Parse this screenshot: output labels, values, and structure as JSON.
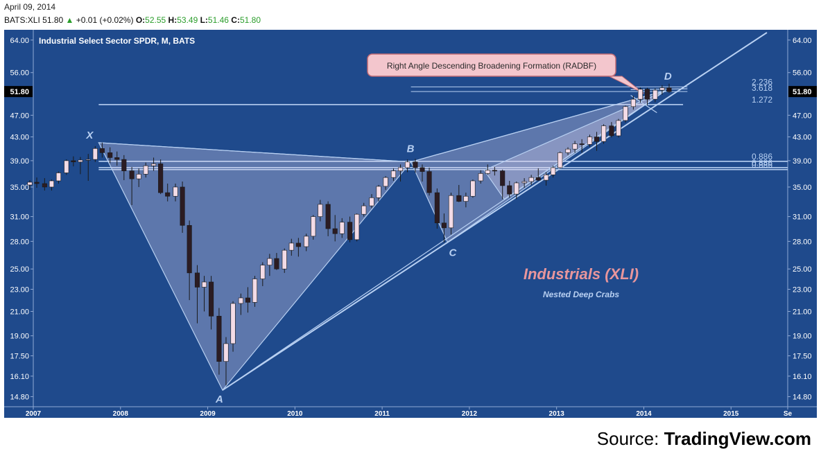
{
  "header": {
    "date": "April 09, 2014",
    "symbol": "BATS:XLI",
    "last": "51.80",
    "change": "+0.01 (+0.02%)",
    "open_label": "O:",
    "open": "52.55",
    "high_label": "H:",
    "high": "53.49",
    "low_label": "L:",
    "low": "51.46",
    "close_label": "C:",
    "close": "51.80"
  },
  "colors": {
    "background": "#1f4a8c",
    "bull_candle": "#f3dbe6",
    "bear_candle": "#2b1c23",
    "pattern_line": "#b8d0f2",
    "title_pink": "#e8969c",
    "subtitle_blue": "#b8d0f2"
  },
  "chart_data": {
    "type": "candlestick",
    "title": "Industrial Select Sector SPDR, M, BATS",
    "annotation_title": "Industrials (XLI)",
    "annotation_subtitle": "Nested Deep Crabs",
    "callout": "Right Angle Descending Broadening Formation (RADBF)",
    "y_scale": "log",
    "ylim": [
      14.2,
      66
    ],
    "y_ticks": [
      "64.00",
      "56.00",
      "47.00",
      "43.00",
      "39.00",
      "35.00",
      "31.00",
      "28.00",
      "25.00",
      "23.00",
      "21.00",
      "19.00",
      "17.50",
      "16.10",
      "14.80"
    ],
    "last_price_label": "51.80",
    "x_start": 2007.0,
    "x_end": 2015.65,
    "x_ticks": [
      {
        "x": 2007.0,
        "label": "2007"
      },
      {
        "x": 2008.0,
        "label": "2008"
      },
      {
        "x": 2009.0,
        "label": "2009"
      },
      {
        "x": 2010.0,
        "label": "2010"
      },
      {
        "x": 2011.0,
        "label": "2011"
      },
      {
        "x": 2012.0,
        "label": "2012"
      },
      {
        "x": 2013.0,
        "label": "2013"
      },
      {
        "x": 2014.0,
        "label": "2014"
      },
      {
        "x": 2015.0,
        "label": "2015"
      },
      {
        "x": 2015.65,
        "label": "Se"
      }
    ],
    "pattern_points": [
      {
        "label": "X",
        "x": 2007.75,
        "y": 42.0
      },
      {
        "label": "A",
        "x": 2009.17,
        "y": 15.2
      },
      {
        "label": "B",
        "x": 2011.33,
        "y": 38.8
      },
      {
        "label": "C",
        "x": 2011.75,
        "y": 27.9
      },
      {
        "label": "D",
        "x": 2014.25,
        "y": 52.0
      }
    ],
    "fib_levels": [
      {
        "label": "2.236",
        "y": 52.8
      },
      {
        "label": "3.618",
        "y": 51.8
      },
      {
        "label": "1.272",
        "y": 49.1
      },
      {
        "label": "0.886",
        "y": 38.9
      },
      {
        "label": "0.886",
        "y": 37.9
      },
      {
        "label": "0.886",
        "y": 37.6
      }
    ],
    "candles": [
      [
        2006.96,
        35.3,
        36.0,
        34.6,
        35.7
      ],
      [
        2007.04,
        35.7,
        36.4,
        34.9,
        35.5
      ],
      [
        2007.13,
        35.5,
        36.3,
        34.5,
        35.0
      ],
      [
        2007.21,
        35.0,
        36.1,
        34.5,
        35.9
      ],
      [
        2007.29,
        35.9,
        37.3,
        35.5,
        37.1
      ],
      [
        2007.38,
        37.1,
        39.2,
        36.8,
        39.0
      ],
      [
        2007.46,
        39.0,
        39.7,
        38.1,
        38.8
      ],
      [
        2007.54,
        38.8,
        39.6,
        36.9,
        39.1
      ],
      [
        2007.63,
        39.1,
        40.1,
        35.9,
        39.2
      ],
      [
        2007.71,
        39.2,
        41.4,
        38.8,
        41.0
      ],
      [
        2007.79,
        41.0,
        42.0,
        39.5,
        40.3
      ],
      [
        2007.88,
        40.3,
        41.2,
        38.6,
        39.5
      ],
      [
        2007.96,
        39.5,
        40.5,
        38.2,
        39.2
      ],
      [
        2008.04,
        39.2,
        39.9,
        36.0,
        37.4
      ],
      [
        2008.13,
        37.4,
        38.0,
        32.5,
        36.2
      ],
      [
        2008.21,
        36.2,
        37.8,
        35.0,
        36.9
      ],
      [
        2008.29,
        36.9,
        38.7,
        36.4,
        38.2
      ],
      [
        2008.38,
        38.2,
        39.5,
        37.4,
        38.5
      ],
      [
        2008.46,
        38.5,
        39.2,
        34.0,
        34.2
      ],
      [
        2008.54,
        34.2,
        35.5,
        33.0,
        33.7
      ],
      [
        2008.63,
        33.7,
        35.5,
        33.0,
        35.0
      ],
      [
        2008.71,
        35.0,
        35.8,
        29.0,
        29.9
      ],
      [
        2008.79,
        29.9,
        30.5,
        22.0,
        24.6
      ],
      [
        2008.88,
        24.6,
        25.4,
        20.0,
        23.2
      ],
      [
        2008.96,
        23.2,
        24.3,
        21.0,
        23.7
      ],
      [
        2009.04,
        23.7,
        24.3,
        19.5,
        20.6
      ],
      [
        2009.13,
        20.6,
        21.3,
        16.2,
        17.1
      ],
      [
        2009.21,
        17.1,
        18.9,
        15.5,
        18.4
      ],
      [
        2009.29,
        18.4,
        21.9,
        17.8,
        21.7
      ],
      [
        2009.38,
        21.7,
        22.6,
        20.7,
        22.2
      ],
      [
        2009.46,
        22.2,
        23.2,
        20.9,
        21.8
      ],
      [
        2009.54,
        21.8,
        24.3,
        21.4,
        24.0
      ],
      [
        2009.63,
        24.0,
        25.7,
        23.3,
        25.4
      ],
      [
        2009.71,
        25.4,
        26.6,
        24.3,
        26.1
      ],
      [
        2009.79,
        26.1,
        26.7,
        24.9,
        25.0
      ],
      [
        2009.88,
        25.0,
        27.2,
        24.6,
        27.0
      ],
      [
        2009.96,
        27.0,
        28.3,
        26.4,
        27.8
      ],
      [
        2010.04,
        27.8,
        28.4,
        26.3,
        27.4
      ],
      [
        2010.13,
        27.4,
        28.9,
        26.9,
        28.6
      ],
      [
        2010.21,
        28.6,
        31.2,
        28.2,
        31.0
      ],
      [
        2010.29,
        31.0,
        33.2,
        30.4,
        32.6
      ],
      [
        2010.38,
        32.6,
        33.0,
        28.6,
        29.5
      ],
      [
        2010.46,
        29.5,
        31.2,
        28.0,
        28.9
      ],
      [
        2010.54,
        28.9,
        30.8,
        28.4,
        30.3
      ],
      [
        2010.63,
        30.3,
        31.0,
        27.9,
        28.2
      ],
      [
        2010.71,
        28.2,
        31.4,
        28.0,
        31.3
      ],
      [
        2010.79,
        31.3,
        32.8,
        31.0,
        32.4
      ],
      [
        2010.88,
        32.4,
        34.0,
        32.1,
        33.5
      ],
      [
        2010.96,
        33.5,
        35.3,
        33.0,
        35.1
      ],
      [
        2011.04,
        35.1,
        36.6,
        34.6,
        36.4
      ],
      [
        2011.13,
        36.4,
        37.8,
        35.9,
        37.4
      ],
      [
        2011.21,
        37.4,
        38.4,
        35.8,
        37.9
      ],
      [
        2011.29,
        37.9,
        39.2,
        37.2,
        38.8
      ],
      [
        2011.38,
        38.8,
        39.3,
        37.1,
        37.9
      ],
      [
        2011.46,
        37.9,
        38.4,
        35.8,
        37.3
      ],
      [
        2011.54,
        37.3,
        37.9,
        33.8,
        34.2
      ],
      [
        2011.63,
        34.2,
        34.8,
        29.5,
        30.2
      ],
      [
        2011.71,
        30.2,
        31.4,
        27.9,
        29.6
      ],
      [
        2011.79,
        29.6,
        34.2,
        28.8,
        33.8
      ],
      [
        2011.88,
        33.8,
        35.3,
        32.9,
        33.0
      ],
      [
        2011.96,
        33.0,
        34.2,
        32.2,
        33.7
      ],
      [
        2012.04,
        33.7,
        36.1,
        33.5,
        35.9
      ],
      [
        2012.13,
        35.9,
        37.5,
        35.5,
        37.0
      ],
      [
        2012.21,
        37.0,
        38.4,
        36.8,
        37.5
      ],
      [
        2012.29,
        37.5,
        38.0,
        36.7,
        37.4
      ],
      [
        2012.38,
        37.4,
        37.6,
        33.3,
        35.2
      ],
      [
        2012.46,
        35.2,
        35.9,
        33.5,
        34.0
      ],
      [
        2012.54,
        34.0,
        35.8,
        33.3,
        35.6
      ],
      [
        2012.63,
        35.6,
        36.3,
        34.9,
        35.8
      ],
      [
        2012.71,
        35.8,
        36.8,
        35.3,
        36.4
      ],
      [
        2012.79,
        36.4,
        37.8,
        35.9,
        36.0
      ],
      [
        2012.88,
        36.0,
        37.2,
        35.2,
        36.8
      ],
      [
        2012.96,
        36.8,
        38.2,
        36.4,
        37.9
      ],
      [
        2013.04,
        37.9,
        40.5,
        37.7,
        40.3
      ],
      [
        2013.13,
        40.3,
        41.2,
        39.9,
        40.9
      ],
      [
        2013.21,
        40.9,
        42.3,
        40.3,
        41.8
      ],
      [
        2013.29,
        41.8,
        42.6,
        40.3,
        41.7
      ],
      [
        2013.38,
        41.7,
        43.4,
        41.3,
        43.0
      ],
      [
        2013.46,
        43.0,
        43.9,
        40.6,
        42.2
      ],
      [
        2013.54,
        42.2,
        45.3,
        41.8,
        45.0
      ],
      [
        2013.63,
        45.0,
        45.7,
        42.9,
        43.2
      ],
      [
        2013.71,
        43.2,
        46.3,
        42.9,
        46.0
      ],
      [
        2013.79,
        46.0,
        48.9,
        45.6,
        48.7
      ],
      [
        2013.88,
        48.7,
        50.9,
        48.1,
        50.2
      ],
      [
        2013.96,
        50.2,
        52.7,
        49.5,
        52.3
      ],
      [
        2014.04,
        52.3,
        52.6,
        49.0,
        50.2
      ],
      [
        2014.13,
        50.2,
        52.5,
        49.6,
        52.1
      ],
      [
        2014.21,
        52.1,
        53.2,
        51.1,
        52.6
      ],
      [
        2014.29,
        52.6,
        53.5,
        51.5,
        51.8
      ]
    ]
  }
}
